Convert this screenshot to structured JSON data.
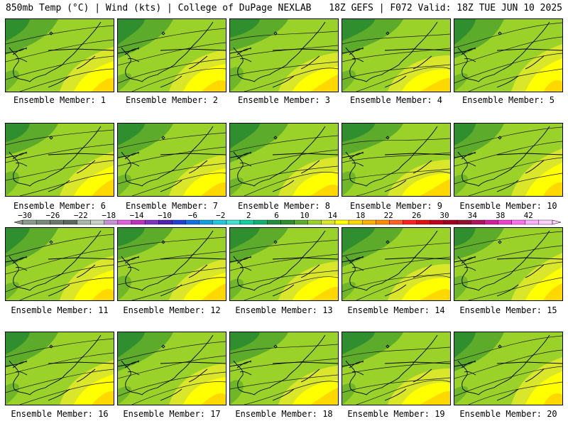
{
  "header": {
    "left": "850mb Temp (°C) | Wind (kts) | College of DuPage NEXLAB",
    "right": "18Z GEFS | F072 Valid: 18Z TUE JUN 10 2025"
  },
  "caption_prefix": "Ensemble Member:",
  "members": [
    1,
    2,
    3,
    4,
    5,
    6,
    7,
    8,
    9,
    10,
    11,
    12,
    13,
    14,
    15,
    16,
    17,
    18,
    19,
    20
  ],
  "colorbar": {
    "labels": [
      "−30",
      "−26",
      "−22",
      "−18",
      "−14",
      "−10",
      "−6",
      "−2",
      "2",
      "6",
      "10",
      "14",
      "18",
      "22",
      "26",
      "30",
      "34",
      "38",
      "42"
    ],
    "colors": [
      "#8c9a8c",
      "#7a8a7a",
      "#6a7a6a",
      "#5a6a5a",
      "#aab8aa",
      "#c6d2c6",
      "#c890d8",
      "#e060e0",
      "#c030c0",
      "#8030c0",
      "#5020b0",
      "#2040d0",
      "#1070e0",
      "#10a0e0",
      "#20c8e0",
      "#40e0d0",
      "#10d0a0",
      "#10b070",
      "#209040",
      "#2f8f2f",
      "#5cab2a",
      "#9ad22a",
      "#d9e62a",
      "#ffff00",
      "#ffd800",
      "#ffb000",
      "#ff8c00",
      "#ff6020",
      "#ff2020",
      "#e01010",
      "#c00020",
      "#a00020",
      "#901030",
      "#b01060",
      "#d020a0",
      "#f040d0",
      "#ff70f0",
      "#ffb0ff",
      "#ffd0ff"
    ]
  },
  "map_colors": {
    "dark_green": "#2f8f2f",
    "green": "#5cab2a",
    "light_green": "#9ad22a",
    "yellow_green": "#d9e62a",
    "yellow": "#ffff00",
    "gold": "#ffd800",
    "orange": "#ffb000"
  }
}
